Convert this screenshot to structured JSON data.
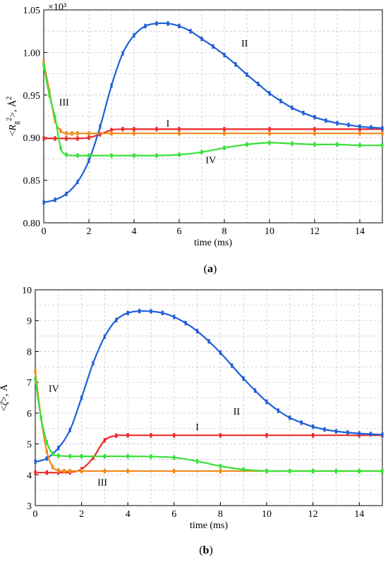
{
  "colors": {
    "I": "#ee2a2a",
    "II": "#1f5fd6",
    "III": "#f08a1c",
    "IV": "#39e039"
  },
  "chart_data": [
    {
      "type": "line",
      "panel_label": "(a)",
      "panel_letter": "a",
      "xlabel": "time (ms)",
      "ylabel": "<Rg²>, Å²",
      "ylabel_parts": {
        "pre": "<",
        "sym": "R",
        "sub": "g",
        "sup": "2",
        "post": ">, Å",
        "unitsup": "2"
      },
      "scale_note": "×10³",
      "xlim": [
        0,
        15
      ],
      "ylim": [
        0.8,
        1.05
      ],
      "xticks": [
        "0",
        "2",
        "4",
        "6",
        "8",
        "10",
        "12",
        "14"
      ],
      "xtick_values": [
        0,
        2,
        4,
        6,
        8,
        10,
        12,
        14
      ],
      "yticks": [
        "0.80",
        "0.85",
        "0.90",
        "0.95",
        "1.00",
        "1.05"
      ],
      "ytick_values": [
        0.8,
        0.85,
        0.9,
        0.95,
        1.0,
        1.05
      ],
      "grid": true,
      "series": [
        {
          "name": "I",
          "color_key": "I",
          "label_at": [
            5.5,
            0.913
          ],
          "x": [
            0,
            0.5,
            1,
            1.5,
            2,
            2.5,
            3,
            3.5,
            4,
            5,
            6,
            8,
            10,
            12,
            14,
            15
          ],
          "y": [
            0.899,
            0.899,
            0.899,
            0.899,
            0.9,
            0.904,
            0.909,
            0.91,
            0.91,
            0.91,
            0.91,
            0.91,
            0.91,
            0.91,
            0.91,
            0.91
          ]
        },
        {
          "name": "II",
          "color_key": "II",
          "label_at": [
            8.9,
            1.007
          ],
          "x": [
            0,
            0.5,
            1,
            1.5,
            2,
            2.5,
            3,
            3.5,
            4,
            4.5,
            5,
            5.5,
            6,
            6.5,
            7,
            7.5,
            8,
            8.5,
            9,
            9.5,
            10,
            10.5,
            11,
            11.5,
            12,
            12.5,
            13,
            13.5,
            14,
            14.5,
            15
          ],
          "y": [
            0.824,
            0.827,
            0.834,
            0.848,
            0.873,
            0.913,
            0.961,
            0.999,
            1.02,
            1.031,
            1.034,
            1.034,
            1.031,
            1.025,
            1.016,
            1.007,
            0.997,
            0.986,
            0.974,
            0.963,
            0.952,
            0.943,
            0.935,
            0.929,
            0.924,
            0.92,
            0.917,
            0.915,
            0.913,
            0.912,
            0.911
          ]
        },
        {
          "name": "III",
          "color_key": "III",
          "label_at": [
            0.9,
            0.938
          ],
          "x": [
            0,
            0.25,
            0.5,
            0.75,
            1,
            1.25,
            1.5,
            2,
            3,
            4,
            6,
            8,
            10,
            12,
            14,
            15
          ],
          "y": [
            0.989,
            0.955,
            0.92,
            0.908,
            0.905,
            0.905,
            0.905,
            0.905,
            0.905,
            0.905,
            0.905,
            0.905,
            0.905,
            0.905,
            0.905,
            0.905
          ]
        },
        {
          "name": "IV",
          "color_key": "IV",
          "label_at": [
            7.4,
            0.87
          ],
          "x": [
            0,
            0.25,
            0.5,
            0.75,
            1,
            1.5,
            2,
            3,
            4,
            5,
            6,
            7,
            8,
            9,
            10,
            11,
            12,
            13,
            14,
            15
          ],
          "y": [
            0.985,
            0.95,
            0.924,
            0.888,
            0.88,
            0.879,
            0.879,
            0.879,
            0.879,
            0.879,
            0.88,
            0.883,
            0.888,
            0.892,
            0.894,
            0.893,
            0.892,
            0.892,
            0.891,
            0.891
          ]
        }
      ]
    },
    {
      "type": "line",
      "panel_label": "(b)",
      "panel_letter": "b",
      "xlabel": "time (ms)",
      "ylabel": "<ζ>, Å",
      "ylabel_parts": {
        "pre": "<",
        "sym": "ζ",
        "sub": "",
        "sup": "",
        "post": ">, Å",
        "unitsup": ""
      },
      "scale_note": "",
      "xlim": [
        0,
        15
      ],
      "ylim": [
        3,
        10
      ],
      "xticks": [
        "0",
        "2",
        "4",
        "6",
        "8",
        "10",
        "12",
        "14"
      ],
      "xtick_values": [
        0,
        2,
        4,
        6,
        8,
        10,
        12,
        14
      ],
      "yticks": [
        "3",
        "4",
        "5",
        "6",
        "7",
        "8",
        "9",
        "10"
      ],
      "ytick_values": [
        3,
        4,
        5,
        6,
        7,
        8,
        9,
        10
      ],
      "grid": true,
      "series": [
        {
          "name": "I",
          "color_key": "I",
          "label_at": [
            7.0,
            5.45
          ],
          "x": [
            0,
            0.5,
            1,
            1.5,
            2,
            2.5,
            3,
            3.5,
            4,
            5,
            6,
            8,
            10,
            12,
            14,
            15
          ],
          "y": [
            4.07,
            4.07,
            4.07,
            4.08,
            4.18,
            4.55,
            5.12,
            5.27,
            5.28,
            5.28,
            5.28,
            5.28,
            5.28,
            5.28,
            5.28,
            5.28
          ]
        },
        {
          "name": "II",
          "color_key": "II",
          "label_at": [
            8.7,
            5.95
          ],
          "x": [
            0,
            0.5,
            1,
            1.5,
            2,
            2.5,
            3,
            3.5,
            4,
            4.5,
            5,
            5.5,
            6,
            6.5,
            7,
            7.5,
            8,
            8.5,
            9,
            9.5,
            10,
            10.5,
            11,
            11.5,
            12,
            12.5,
            13,
            13.5,
            14,
            14.5,
            15
          ],
          "y": [
            4.42,
            4.53,
            4.87,
            5.45,
            6.5,
            7.62,
            8.48,
            9.02,
            9.25,
            9.31,
            9.3,
            9.25,
            9.12,
            8.92,
            8.66,
            8.33,
            7.96,
            7.54,
            7.12,
            6.73,
            6.37,
            6.08,
            5.85,
            5.69,
            5.56,
            5.47,
            5.41,
            5.37,
            5.34,
            5.32,
            5.3
          ]
        },
        {
          "name": "III",
          "color_key": "III",
          "label_at": [
            2.9,
            3.65
          ],
          "x": [
            0,
            0.25,
            0.5,
            0.75,
            1,
            1.25,
            1.5,
            2,
            3,
            4,
            6,
            8,
            10,
            12,
            14,
            15
          ],
          "y": [
            7.35,
            5.85,
            4.75,
            4.25,
            4.14,
            4.12,
            4.12,
            4.12,
            4.12,
            4.12,
            4.12,
            4.12,
            4.12,
            4.12,
            4.12,
            4.12
          ]
        },
        {
          "name": "IV",
          "color_key": "IV",
          "label_at": [
            0.8,
            6.7
          ],
          "x": [
            0,
            0.25,
            0.5,
            0.75,
            1,
            1.5,
            2,
            3,
            4,
            5,
            6,
            7,
            8,
            9,
            10,
            11,
            12,
            13,
            14,
            15
          ],
          "y": [
            7.1,
            5.85,
            5.05,
            4.68,
            4.62,
            4.6,
            4.6,
            4.6,
            4.6,
            4.59,
            4.56,
            4.44,
            4.28,
            4.17,
            4.12,
            4.12,
            4.12,
            4.12,
            4.12,
            4.12
          ]
        }
      ]
    }
  ]
}
